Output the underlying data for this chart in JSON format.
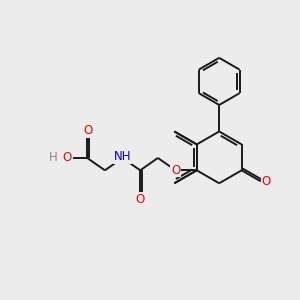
{
  "bg_color": "#ececec",
  "bond_color": "#1a1a1a",
  "bond_width": 1.4,
  "atom_colors": {
    "O": "#ff0000",
    "N": "#0000cc",
    "H": "#888888",
    "C": "#1a1a1a"
  },
  "font_size": 8.5,
  "fig_size": [
    3.0,
    3.0
  ],
  "dpi": 100,
  "xlim": [
    0,
    10
  ],
  "ylim": [
    0,
    10
  ]
}
